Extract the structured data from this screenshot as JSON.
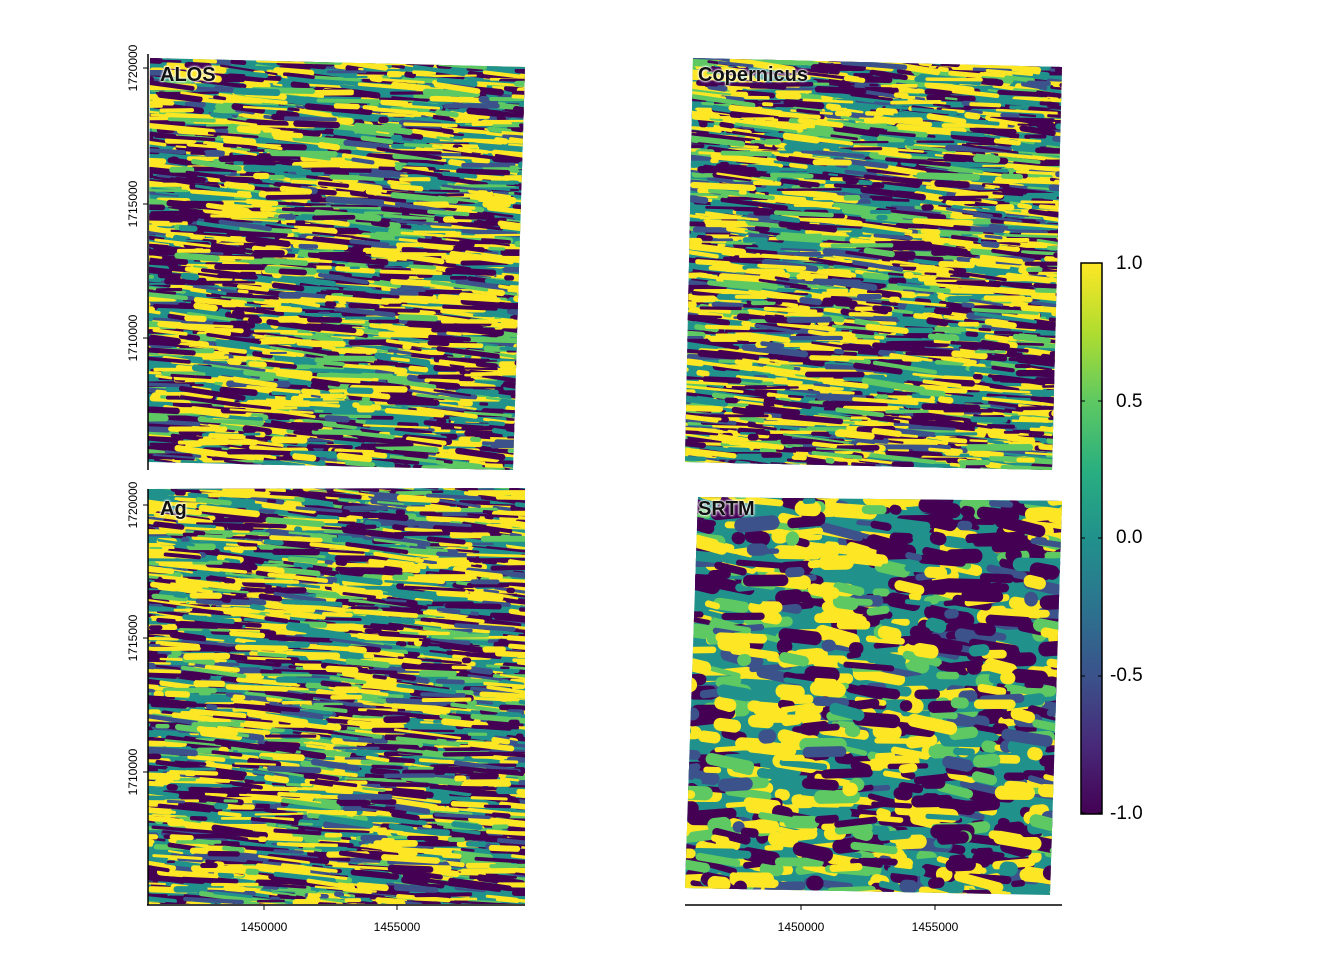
{
  "panels": [
    {
      "id": "alos",
      "label": "ALOS",
      "texture": "fine"
    },
    {
      "id": "copernicus",
      "label": "Copernicus",
      "texture": "fine"
    },
    {
      "id": "ag",
      "label": "Ag",
      "texture": "fine"
    },
    {
      "id": "srtm",
      "label": "SRTM",
      "texture": "coarse"
    }
  ],
  "axes": {
    "y_ticks": [
      "1720000",
      "1715000",
      "1710000"
    ],
    "x_ticks": [
      "1450000",
      "1455000"
    ]
  },
  "legend": {
    "type": "continuous colorbar",
    "colormap": "viridis",
    "min": -1.0,
    "max": 1.0,
    "ticks": [
      "1.0",
      "0.5",
      "0.0",
      "-0.5",
      "-1.0"
    ],
    "colors": [
      "#440154",
      "#3b528b",
      "#21918c",
      "#5ec962",
      "#fde725"
    ]
  }
}
